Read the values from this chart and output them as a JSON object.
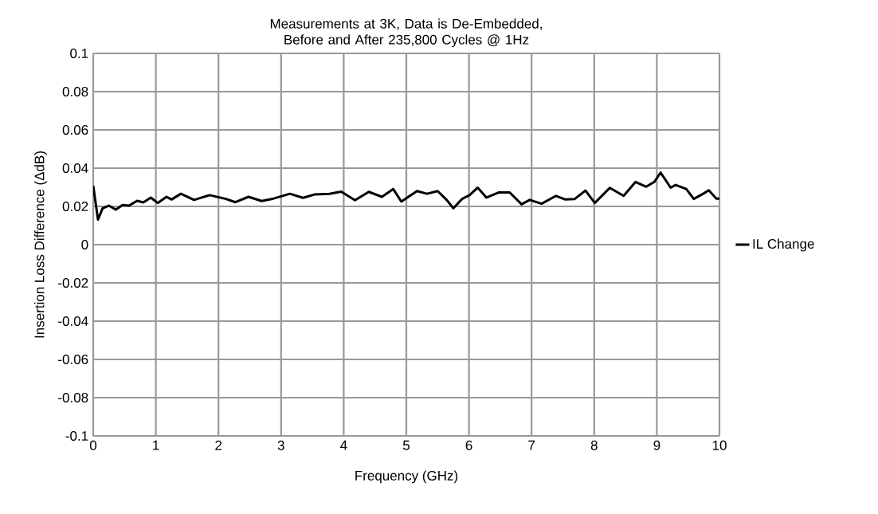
{
  "chart_data": {
    "type": "line",
    "title": "Measurements at 3K, Data is De-Embedded, Before and After 235,800 Cycles @ 1Hz",
    "xlabel": "Frequency (GHz)",
    "ylabel": "Insertion Loss Difference (ΔdB)",
    "xlim": [
      0,
      10
    ],
    "ylim": [
      -0.1,
      0.1
    ],
    "xticks": [
      0,
      1,
      2,
      3,
      4,
      5,
      6,
      7,
      8,
      9,
      10
    ],
    "yticks": [
      -0.1,
      -0.08,
      -0.06,
      -0.04,
      -0.02,
      0,
      0.02,
      0.04,
      0.06,
      0.08,
      0.1
    ],
    "grid": true,
    "legend": "right",
    "marker": "none",
    "line_style": "solid",
    "series": [
      {
        "name": "IL Change",
        "color": "#000000",
        "x": [
          0,
          0.076,
          0.15,
          0.25,
          0.36,
          0.47,
          0.57,
          0.7,
          0.8,
          0.92,
          1.03,
          1.17,
          1.25,
          1.4,
          1.61,
          1.86,
          2.12,
          2.27,
          2.48,
          2.69,
          2.88,
          3.14,
          3.35,
          3.53,
          3.77,
          3.96,
          4.18,
          4.4,
          4.61,
          4.79,
          4.92,
          5.17,
          5.33,
          5.5,
          5.65,
          5.75,
          5.89,
          6.01,
          6.14,
          6.28,
          6.48,
          6.65,
          6.84,
          6.97,
          7.16,
          7.39,
          7.54,
          7.69,
          7.86,
          8.01,
          8.25,
          8.47,
          8.66,
          8.83,
          8.96,
          9.06,
          9.22,
          9.3,
          9.47,
          9.59,
          9.74,
          9.83,
          9.95,
          10
        ],
        "values": [
          0.0308,
          0.0131,
          0.019,
          0.0204,
          0.0183,
          0.0207,
          0.0204,
          0.0229,
          0.0221,
          0.0246,
          0.0218,
          0.025,
          0.0236,
          0.0266,
          0.0234,
          0.0259,
          0.0239,
          0.0222,
          0.025,
          0.0228,
          0.0241,
          0.0266,
          0.0245,
          0.0262,
          0.0266,
          0.0277,
          0.0232,
          0.0276,
          0.025,
          0.0291,
          0.0225,
          0.028,
          0.0266,
          0.028,
          0.0232,
          0.019,
          0.0239,
          0.0259,
          0.0298,
          0.0246,
          0.0273,
          0.0273,
          0.0211,
          0.0234,
          0.0214,
          0.0255,
          0.0236,
          0.0239,
          0.0283,
          0.0218,
          0.0297,
          0.0255,
          0.0328,
          0.0303,
          0.0328,
          0.0377,
          0.0298,
          0.0312,
          0.0291,
          0.0239,
          0.0266,
          0.0284,
          0.0241,
          0.0241
        ]
      }
    ]
  }
}
